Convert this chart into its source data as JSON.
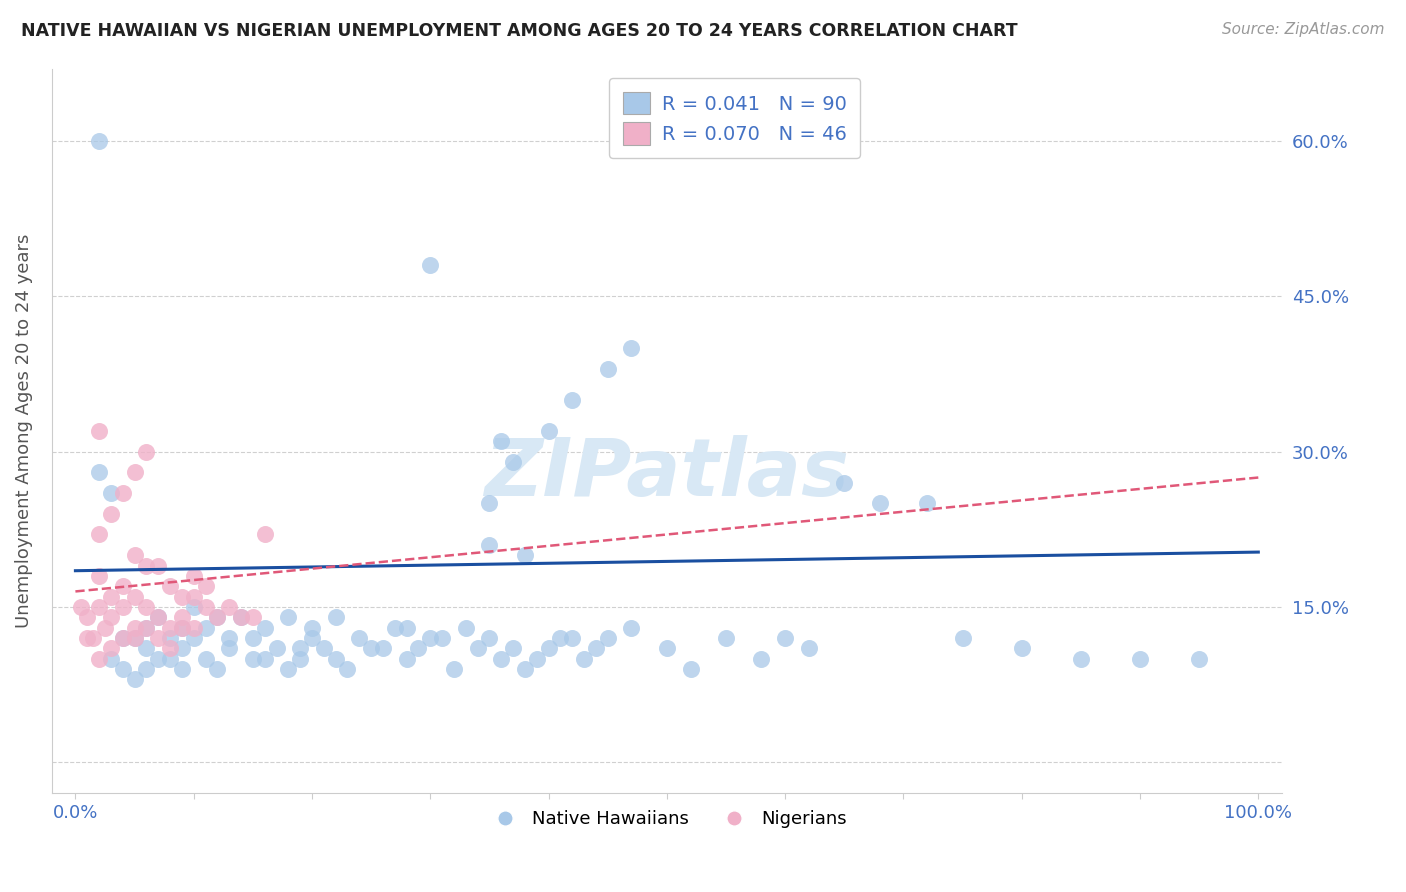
{
  "title": "NATIVE HAWAIIAN VS NIGERIAN UNEMPLOYMENT AMONG AGES 20 TO 24 YEARS CORRELATION CHART",
  "source": "Source: ZipAtlas.com",
  "ylabel": "Unemployment Among Ages 20 to 24 years",
  "xlim": [
    -2,
    102
  ],
  "ylim": [
    -3,
    67
  ],
  "ytick_vals": [
    0,
    15,
    30,
    45,
    60
  ],
  "ytick_labels_right": [
    "",
    "15.0%",
    "30.0%",
    "45.0%",
    "60.0%"
  ],
  "xtick_vals": [
    0,
    10,
    20,
    30,
    40,
    50,
    60,
    70,
    80,
    90,
    100
  ],
  "xtick_labels": [
    "0.0%",
    "",
    "",
    "",
    "",
    "",
    "",
    "",
    "",
    "",
    "100.0%"
  ],
  "blue_color": "#a8c8e8",
  "pink_color": "#f0b0c8",
  "trend_blue_color": "#1a4fa0",
  "trend_pink_color": "#e05878",
  "tick_color": "#4472c4",
  "grid_color": "#d0d0d0",
  "watermark_color": "#d8e8f5",
  "blue_label": "Native Hawaiians",
  "pink_label": "Nigerians",
  "legend1_r": "R = 0.041",
  "legend1_n": "N = 90",
  "legend2_r": "R = 0.070",
  "legend2_n": "N = 46",
  "blue_trend_x": [
    0,
    100
  ],
  "blue_trend_y": [
    18.5,
    20.3
  ],
  "pink_trend_x": [
    0,
    100
  ],
  "pink_trend_y": [
    16.5,
    27.5
  ],
  "blue_x": [
    2,
    3,
    3,
    4,
    4,
    5,
    5,
    6,
    6,
    6,
    7,
    7,
    8,
    8,
    9,
    9,
    9,
    10,
    10,
    11,
    11,
    12,
    12,
    13,
    13,
    14,
    15,
    15,
    16,
    16,
    17,
    18,
    18,
    19,
    19,
    20,
    20,
    21,
    22,
    22,
    23,
    24,
    25,
    26,
    27,
    28,
    28,
    29,
    30,
    31,
    32,
    33,
    34,
    35,
    36,
    37,
    38,
    38,
    39,
    40,
    41,
    42,
    43,
    44,
    45,
    47,
    50,
    52,
    55,
    58,
    60,
    62,
    65,
    68,
    72,
    75,
    80,
    85,
    90,
    95,
    35,
    35,
    36,
    37,
    40,
    42,
    45,
    47,
    2,
    30
  ],
  "blue_y": [
    28,
    26,
    10,
    12,
    9,
    8,
    12,
    9,
    13,
    11,
    10,
    14,
    12,
    10,
    13,
    11,
    9,
    12,
    15,
    10,
    13,
    9,
    14,
    12,
    11,
    14,
    12,
    10,
    13,
    10,
    11,
    9,
    14,
    10,
    11,
    13,
    12,
    11,
    10,
    14,
    9,
    12,
    11,
    11,
    13,
    13,
    10,
    11,
    12,
    12,
    9,
    13,
    11,
    12,
    10,
    11,
    9,
    20,
    10,
    11,
    12,
    12,
    10,
    11,
    12,
    13,
    11,
    9,
    12,
    10,
    12,
    11,
    27,
    25,
    25,
    12,
    11,
    10,
    10,
    10,
    25,
    21,
    31,
    29,
    32,
    35,
    38,
    40,
    60,
    48
  ],
  "pink_x": [
    0.5,
    1,
    1.5,
    2,
    2,
    2.5,
    3,
    3,
    4,
    4,
    5,
    5,
    5,
    6,
    6,
    7,
    7,
    8,
    8,
    9,
    9,
    10,
    10,
    11,
    11,
    12,
    13,
    14,
    15,
    16,
    1,
    2,
    3,
    4,
    5,
    6,
    7,
    8,
    9,
    10,
    2,
    3,
    5,
    6,
    2,
    4
  ],
  "pink_y": [
    15,
    14,
    12,
    15,
    18,
    13,
    14,
    16,
    15,
    17,
    13,
    16,
    20,
    15,
    19,
    14,
    19,
    13,
    17,
    16,
    14,
    18,
    16,
    15,
    17,
    14,
    15,
    14,
    14,
    22,
    12,
    10,
    11,
    12,
    12,
    13,
    12,
    11,
    13,
    13,
    22,
    24,
    28,
    30,
    32,
    26
  ]
}
